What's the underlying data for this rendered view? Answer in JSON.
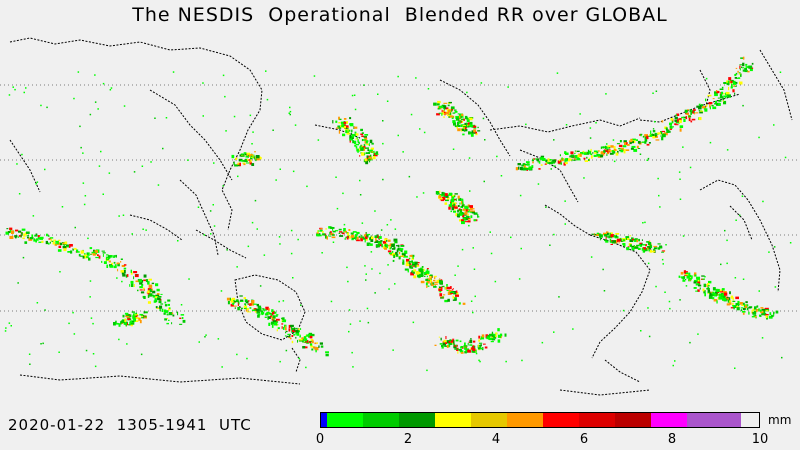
{
  "title": "The NESDIS  Operational  Blended RR over GLOBAL",
  "timestamp": "2020-01-22  1305-1941  UTC",
  "legend": {
    "unit": "mm",
    "ticks": [
      "0",
      "2",
      "4",
      "6",
      "8",
      "10"
    ],
    "colors": [
      "#0000ff",
      "#00ff00",
      "#00cc00",
      "#009900",
      "#ffff00",
      "#e6c800",
      "#ff9900",
      "#ff0000",
      "#dd0000",
      "#bb0000",
      "#ff00ff",
      "#aa55cc"
    ]
  },
  "map_colors": {
    "background": "#f0f0f0",
    "coast": "#000000",
    "grid": "#666666"
  }
}
